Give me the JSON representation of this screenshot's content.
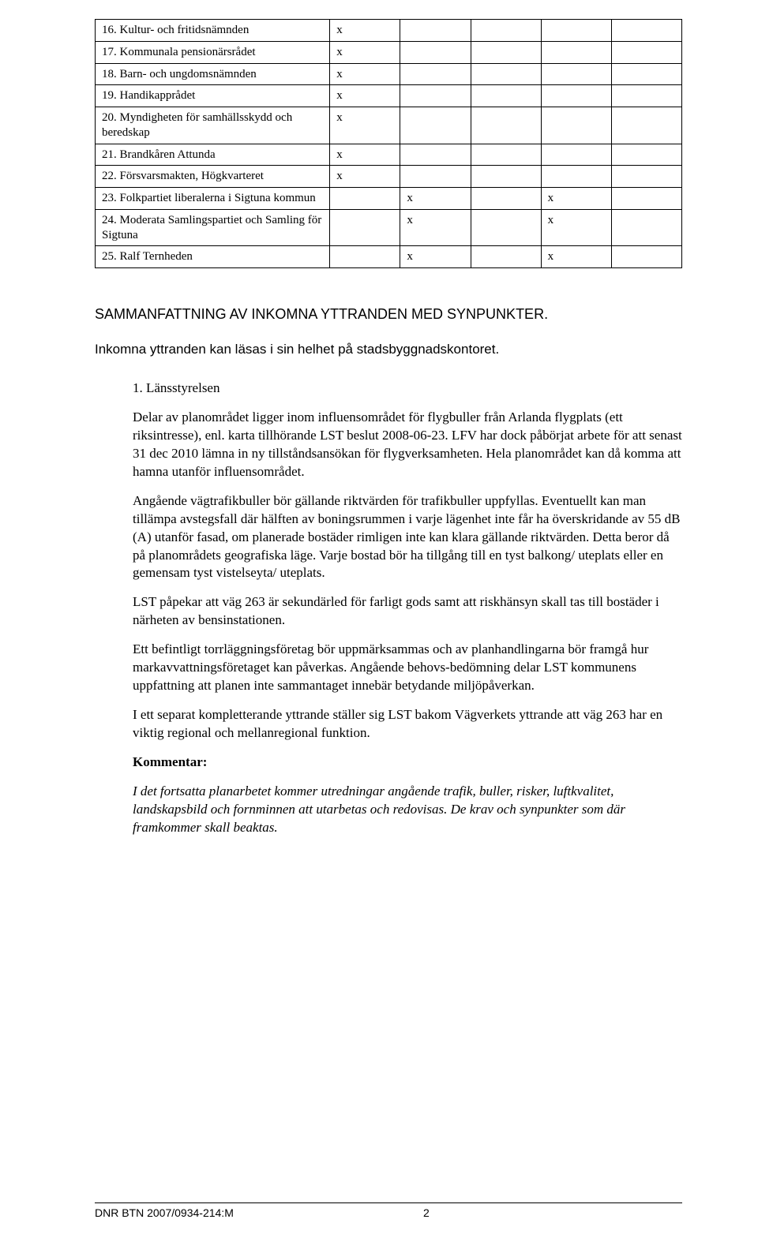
{
  "table": {
    "rows": [
      {
        "label": "16. Kultur- och fritidsnämnden",
        "c1": "x",
        "c2": "",
        "c3": "",
        "c4": "",
        "c5": ""
      },
      {
        "label": "17. Kommunala pensionärsrådet",
        "c1": "x",
        "c2": "",
        "c3": "",
        "c4": "",
        "c5": ""
      },
      {
        "label": "18. Barn- och ungdomsnämnden",
        "c1": "x",
        "c2": "",
        "c3": "",
        "c4": "",
        "c5": ""
      },
      {
        "label": "19. Handikapprådet",
        "c1": "x",
        "c2": "",
        "c3": "",
        "c4": "",
        "c5": ""
      },
      {
        "label": "20. Myndigheten för samhällsskydd och beredskap",
        "c1": "x",
        "c2": "",
        "c3": "",
        "c4": "",
        "c5": ""
      },
      {
        "label": "21. Brandkåren Attunda",
        "c1": "x",
        "c2": "",
        "c3": "",
        "c4": "",
        "c5": ""
      },
      {
        "label": "22. Försvarsmakten, Högkvarteret",
        "c1": "x",
        "c2": "",
        "c3": "",
        "c4": "",
        "c5": ""
      },
      {
        "label": "23. Folkpartiet liberalerna  i Sigtuna kommun",
        "c1": "",
        "c2": "x",
        "c3": "",
        "c4": "x",
        "c5": ""
      },
      {
        "label": "24. Moderata Samlingspartiet och Samling för Sigtuna",
        "c1": "",
        "c2": "x",
        "c3": "",
        "c4": "x",
        "c5": ""
      },
      {
        "label": "25. Ralf Ternheden",
        "c1": "",
        "c2": "x",
        "c3": "",
        "c4": "x",
        "c5": ""
      }
    ]
  },
  "section_heading": "SAMMANFATTNING AV INKOMNA YTTRANDEN MED SYNPUNKTER.",
  "intro_line": "Inkomna yttranden kan läsas i sin helhet på stadsbyggnadskontoret.",
  "item": {
    "title": "1.  Länsstyrelsen",
    "paras": [
      "Delar av planområdet ligger inom influensområdet för flygbuller från Arlanda flygplats (ett riksintresse), enl. karta tillhörande LST beslut 2008-06-23. LFV har dock påbörjat arbete för att senast 31 dec 2010 lämna in ny tillståndsansökan för flygverksamheten. Hela planområdet kan då komma att hamna utanför influensområdet.",
      "Angående vägtrafikbuller bör gällande riktvärden för trafikbuller uppfyllas. Eventuellt kan man tillämpa avstegsfall där hälften av boningsrummen i varje lägenhet inte får ha överskridande av 55 dB (A) utanför fasad, om planerade bostäder rimligen inte kan klara gällande riktvärden. Detta beror då på planområdets geografiska läge. Varje bostad bör ha tillgång till en tyst balkong/ uteplats eller en gemensam tyst vistelseyta/ uteplats.",
      "LST påpekar att väg 263 är sekundärled för farligt gods samt att riskhänsyn skall tas till bostäder i närheten av bensinstationen.",
      "Ett befintligt torrläggningsföretag bör uppmärksammas och av planhandlingarna bör framgå hur markavvattningsföretaget kan påverkas. Angående behovs-bedömning delar LST kommunens uppfattning att planen inte sammantaget innebär betydande miljöpåverkan.",
      "I ett separat kompletterande yttrande ställer sig LST bakom Vägverkets yttrande att väg 263 har en viktig regional och mellanregional funktion."
    ],
    "kommentar_label": "Kommentar:",
    "kommentar_text": "I det fortsatta planarbetet kommer utredningar angående trafik, buller, risker, luftkvalitet, landskapsbild och fornminnen att utarbetas och redovisas. De krav och synpunkter som där  framkommer skall beaktas."
  },
  "footer": {
    "dnr": "DNR BTN 2007/0934-214:M",
    "page": "2"
  }
}
